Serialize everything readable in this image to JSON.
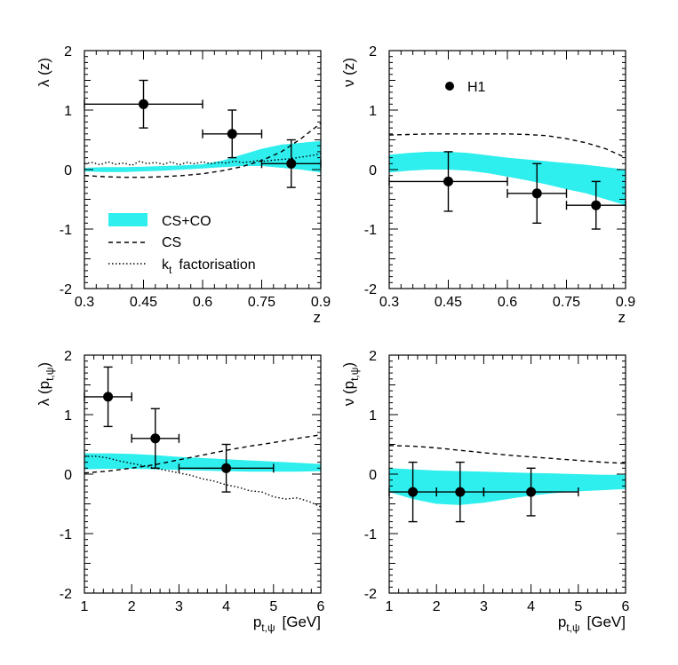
{
  "colors": {
    "band": "#2eeeee",
    "ink": "#000000",
    "background": "#ffffff"
  },
  "legend": {
    "band_label": "CS+CO",
    "dashed_label": "CS",
    "dotted_label_main": "k",
    "dotted_label_sub": "t",
    "dotted_label_rest": "factorisation",
    "data_label": "H1"
  },
  "chart_data": [
    {
      "id": "lambda-z",
      "type": "line",
      "ylabel_main": "λ (z)",
      "xlabel_main": "z",
      "xlim": [
        0.3,
        0.9
      ],
      "ylim": [
        -2,
        2
      ],
      "xticks": [
        0.3,
        0.45,
        0.6,
        0.75,
        0.9
      ],
      "xtick_labels": [
        "0.3",
        "0.45",
        "0.6",
        "0.75",
        "0.9"
      ],
      "yticks": [
        -2,
        -1,
        0,
        1,
        2
      ],
      "ytick_labels": [
        "-2",
        "-1",
        "0",
        "1",
        "2"
      ],
      "band": {
        "name": "CS+CO",
        "x": [
          0.3,
          0.35,
          0.4,
          0.45,
          0.5,
          0.55,
          0.6,
          0.65,
          0.7,
          0.75,
          0.8,
          0.85,
          0.9
        ],
        "lower": [
          -0.03,
          -0.04,
          -0.04,
          -0.03,
          -0.02,
          0.0,
          0.02,
          0.04,
          0.06,
          0.06,
          0.03,
          0.0,
          -0.05
        ],
        "upper": [
          0.03,
          0.04,
          0.04,
          0.05,
          0.06,
          0.07,
          0.09,
          0.15,
          0.25,
          0.35,
          0.42,
          0.45,
          0.48
        ]
      },
      "curves": [
        {
          "name": "CS",
          "style": "dashed",
          "x": [
            0.3,
            0.35,
            0.4,
            0.45,
            0.5,
            0.55,
            0.6,
            0.65,
            0.7,
            0.75,
            0.8,
            0.85,
            0.9
          ],
          "y": [
            -0.1,
            -0.12,
            -0.13,
            -0.13,
            -0.12,
            -0.1,
            -0.07,
            -0.02,
            0.05,
            0.15,
            0.3,
            0.52,
            0.78
          ]
        },
        {
          "name": "kt factorisation",
          "style": "dotted",
          "x": [
            0.3,
            0.32,
            0.34,
            0.36,
            0.38,
            0.4,
            0.42,
            0.44,
            0.46,
            0.48,
            0.5,
            0.52,
            0.54,
            0.56,
            0.58,
            0.6,
            0.62,
            0.64,
            0.66,
            0.68,
            0.7,
            0.72,
            0.74,
            0.76,
            0.78,
            0.8,
            0.82,
            0.84,
            0.86,
            0.88,
            0.9
          ],
          "y": [
            0.1,
            0.12,
            0.08,
            0.13,
            0.09,
            0.11,
            0.07,
            0.14,
            0.1,
            0.12,
            0.09,
            0.13,
            0.08,
            0.12,
            0.1,
            0.13,
            0.1,
            0.12,
            0.11,
            0.14,
            0.12,
            0.13,
            0.15,
            0.14,
            0.16,
            0.17,
            0.18,
            0.2,
            0.22,
            0.24,
            0.27
          ]
        }
      ],
      "points": [
        {
          "x": 0.45,
          "y": 1.1,
          "xlo": 0.3,
          "xhi": 0.6,
          "ylo": 0.7,
          "yhi": 1.5
        },
        {
          "x": 0.675,
          "y": 0.6,
          "xlo": 0.6,
          "xhi": 0.75,
          "ylo": 0.2,
          "yhi": 1.0
        },
        {
          "x": 0.825,
          "y": 0.1,
          "xlo": 0.75,
          "xhi": 0.9,
          "ylo": -0.3,
          "yhi": 0.5
        }
      ]
    },
    {
      "id": "nu-z",
      "type": "line",
      "ylabel_main": "ν (z)",
      "xlabel_main": "z",
      "xlim": [
        0.3,
        0.9
      ],
      "ylim": [
        -2,
        2
      ],
      "xticks": [
        0.3,
        0.45,
        0.6,
        0.75,
        0.9
      ],
      "xtick_labels": [
        "0.3",
        "0.45",
        "0.6",
        "0.75",
        "0.9"
      ],
      "yticks": [
        -2,
        -1,
        0,
        1,
        2
      ],
      "ytick_labels": [
        "-2",
        "-1",
        "0",
        "1",
        "2"
      ],
      "band": {
        "name": "CS+CO",
        "x": [
          0.3,
          0.35,
          0.4,
          0.45,
          0.5,
          0.55,
          0.6,
          0.65,
          0.7,
          0.75,
          0.8,
          0.85,
          0.9
        ],
        "lower": [
          -0.05,
          -0.02,
          0.0,
          0.0,
          -0.02,
          -0.06,
          -0.12,
          -0.18,
          -0.25,
          -0.33,
          -0.4,
          -0.5,
          -0.6
        ],
        "upper": [
          0.25,
          0.28,
          0.3,
          0.3,
          0.28,
          0.24,
          0.2,
          0.17,
          0.14,
          0.11,
          0.08,
          0.04,
          0.0
        ]
      },
      "curves": [
        {
          "name": "CS",
          "style": "dashed",
          "x": [
            0.3,
            0.35,
            0.4,
            0.45,
            0.5,
            0.55,
            0.6,
            0.65,
            0.7,
            0.75,
            0.8,
            0.85,
            0.9
          ],
          "y": [
            0.58,
            0.59,
            0.6,
            0.6,
            0.6,
            0.6,
            0.6,
            0.59,
            0.57,
            0.52,
            0.45,
            0.35,
            0.2
          ]
        }
      ],
      "points": [
        {
          "x": 0.45,
          "y": -0.2,
          "xlo": 0.3,
          "xhi": 0.6,
          "ylo": -0.7,
          "yhi": 0.3
        },
        {
          "x": 0.675,
          "y": -0.4,
          "xlo": 0.6,
          "xhi": 0.75,
          "ylo": -0.9,
          "yhi": 0.1
        },
        {
          "x": 0.825,
          "y": -0.6,
          "xlo": 0.75,
          "xhi": 0.9,
          "ylo": -1.0,
          "yhi": -0.2
        }
      ]
    },
    {
      "id": "lambda-pt",
      "type": "line",
      "ylabel_main": "λ (p",
      "ylabel_sub": "t,ψ",
      "ylabel_end": ")",
      "xlabel_main": "p",
      "xlabel_sub": "t,ψ",
      "xlabel_end": "[GeV]",
      "xlim": [
        1,
        6
      ],
      "ylim": [
        -2,
        2
      ],
      "xticks": [
        1,
        2,
        3,
        4,
        5,
        6
      ],
      "xtick_labels": [
        "1",
        "2",
        "3",
        "4",
        "5",
        "6"
      ],
      "yticks": [
        -2,
        -1,
        0,
        1,
        2
      ],
      "ytick_labels": [
        "-2",
        "-1",
        "0",
        "1",
        "2"
      ],
      "band": {
        "name": "CS+CO",
        "x": [
          1,
          1.5,
          2,
          2.5,
          3,
          3.5,
          4,
          4.5,
          5,
          5.5,
          6
        ],
        "lower": [
          0.08,
          0.09,
          0.09,
          0.08,
          0.07,
          0.06,
          0.05,
          0.04,
          0.04,
          0.04,
          0.05
        ],
        "upper": [
          0.35,
          0.35,
          0.34,
          0.32,
          0.29,
          0.27,
          0.25,
          0.23,
          0.21,
          0.19,
          0.17
        ]
      },
      "curves": [
        {
          "name": "CS",
          "style": "dashed",
          "x": [
            1,
            1.5,
            2,
            2.5,
            3,
            3.5,
            4,
            4.5,
            5,
            5.5,
            6
          ],
          "y": [
            0.02,
            0.05,
            0.1,
            0.16,
            0.24,
            0.32,
            0.4,
            0.47,
            0.53,
            0.6,
            0.66
          ]
        },
        {
          "name": "kt factorisation",
          "style": "dotted",
          "x": [
            1,
            1.25,
            1.5,
            1.75,
            2,
            2.25,
            2.5,
            2.75,
            3,
            3.25,
            3.5,
            3.75,
            4,
            4.25,
            4.5,
            4.75,
            5,
            5.25,
            5.5,
            5.75,
            6
          ],
          "y": [
            0.3,
            0.3,
            0.27,
            0.22,
            0.18,
            0.14,
            0.1,
            0.06,
            0.02,
            -0.02,
            -0.08,
            -0.12,
            -0.18,
            -0.22,
            -0.28,
            -0.3,
            -0.38,
            -0.42,
            -0.4,
            -0.46,
            -0.55
          ]
        }
      ],
      "points": [
        {
          "x": 1.5,
          "y": 1.3,
          "xlo": 1.0,
          "xhi": 2.0,
          "ylo": 0.8,
          "yhi": 1.8
        },
        {
          "x": 2.5,
          "y": 0.6,
          "xlo": 2.0,
          "xhi": 3.0,
          "ylo": 0.1,
          "yhi": 1.1
        },
        {
          "x": 4.0,
          "y": 0.1,
          "xlo": 3.0,
          "xhi": 5.0,
          "ylo": -0.3,
          "yhi": 0.5
        }
      ]
    },
    {
      "id": "nu-pt",
      "type": "line",
      "ylabel_main": "ν (p",
      "ylabel_sub": "t,ψ",
      "ylabel_end": ")",
      "xlabel_main": "p",
      "xlabel_sub": "t,ψ",
      "xlabel_end": "[GeV]",
      "xlim": [
        1,
        6
      ],
      "ylim": [
        -2,
        2
      ],
      "xticks": [
        1,
        2,
        3,
        4,
        5,
        6
      ],
      "xtick_labels": [
        "1",
        "2",
        "3",
        "4",
        "5",
        "6"
      ],
      "yticks": [
        -2,
        -1,
        0,
        1,
        2
      ],
      "ytick_labels": [
        "-2",
        "-1",
        "0",
        "1",
        "2"
      ],
      "band": {
        "name": "CS+CO",
        "x": [
          1,
          1.5,
          2,
          2.5,
          3,
          3.5,
          4,
          4.5,
          5,
          5.5,
          6
        ],
        "lower": [
          -0.3,
          -0.42,
          -0.5,
          -0.52,
          -0.48,
          -0.42,
          -0.36,
          -0.32,
          -0.29,
          -0.27,
          -0.25
        ],
        "upper": [
          0.1,
          0.08,
          0.06,
          0.05,
          0.04,
          0.03,
          0.02,
          0.01,
          0.0,
          -0.01,
          -0.01
        ]
      },
      "curves": [
        {
          "name": "CS",
          "style": "dashed",
          "x": [
            1,
            1.5,
            2,
            2.5,
            3,
            3.5,
            4,
            4.5,
            5,
            5.5,
            6
          ],
          "y": [
            0.48,
            0.47,
            0.44,
            0.4,
            0.36,
            0.32,
            0.29,
            0.26,
            0.23,
            0.2,
            0.18
          ]
        }
      ],
      "points": [
        {
          "x": 1.5,
          "y": -0.3,
          "xlo": 1.0,
          "xhi": 2.0,
          "ylo": -0.8,
          "yhi": 0.2
        },
        {
          "x": 2.5,
          "y": -0.3,
          "xlo": 2.0,
          "xhi": 3.0,
          "ylo": -0.8,
          "yhi": 0.2
        },
        {
          "x": 4.0,
          "y": -0.3,
          "xlo": 3.0,
          "xhi": 5.0,
          "ylo": -0.7,
          "yhi": 0.1
        }
      ]
    }
  ]
}
